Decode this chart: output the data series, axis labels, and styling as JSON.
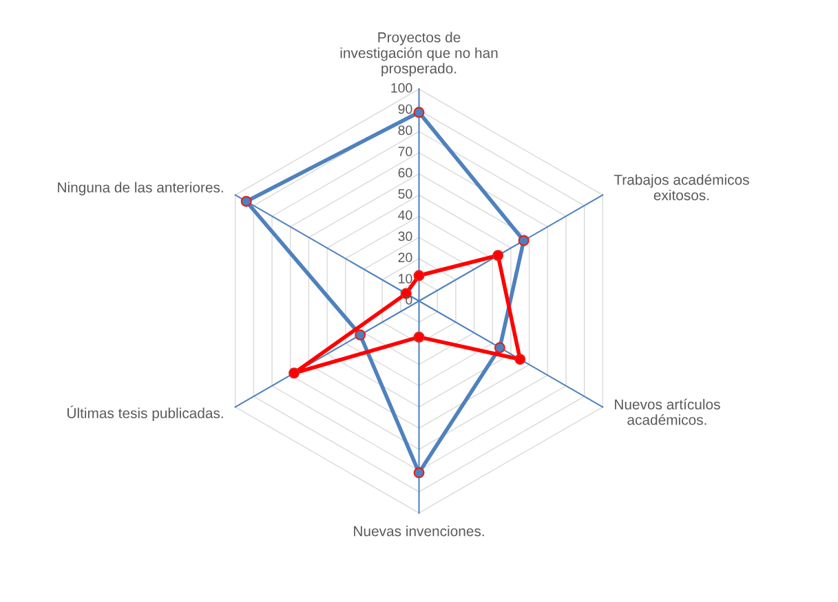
{
  "chart_data": {
    "type": "radar",
    "categories": [
      "Proyectos de\ninvestigación que no han\nprosperado.",
      "Trabajos académicos\nexitosos.",
      "Nuevos artículos\nacadémicos.",
      "Nuevas invenciones.",
      "Últimas tesis publicadas.",
      "Ninguna de las anteriores."
    ],
    "series": [
      {
        "color": "#4f81bd",
        "values": [
          89,
          57,
          44,
          81,
          32,
          94
        ]
      },
      {
        "color": "#ff0000",
        "values": [
          12,
          43,
          55,
          17,
          68,
          7
        ]
      }
    ],
    "ylim": [
      0,
      100
    ],
    "yticks": [
      0,
      10,
      20,
      30,
      40,
      50,
      60,
      70,
      80,
      90,
      100
    ],
    "grid": true,
    "marker": "circle",
    "line_style": "solid",
    "legend": false
  }
}
